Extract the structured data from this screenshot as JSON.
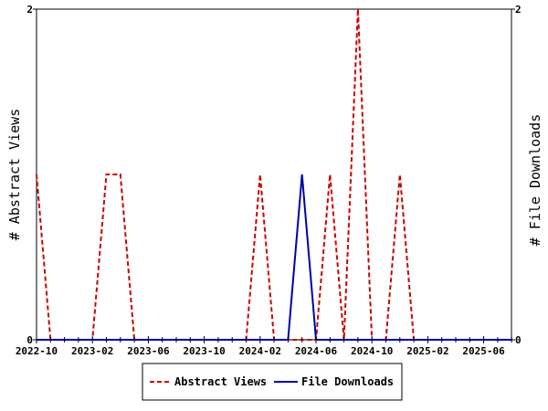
{
  "chart_data": {
    "type": "line",
    "xlabel": "",
    "ylabel_left": "# Abstract Views",
    "ylabel_right": "# File Downloads",
    "ylim": [
      0,
      2
    ],
    "y_ticks": [
      0,
      2
    ],
    "x": [
      "2022-10",
      "2022-11",
      "2022-12",
      "2023-01",
      "2023-02",
      "2023-03",
      "2023-04",
      "2023-05",
      "2023-06",
      "2023-07",
      "2023-08",
      "2023-09",
      "2023-10",
      "2023-11",
      "2023-12",
      "2024-01",
      "2024-02",
      "2024-03",
      "2024-04",
      "2024-05",
      "2024-06",
      "2024-07",
      "2024-08",
      "2024-09",
      "2024-10",
      "2024-11",
      "2024-12",
      "2025-01",
      "2025-02",
      "2025-03",
      "2025-04",
      "2025-05",
      "2025-06",
      "2025-07",
      "2025-08"
    ],
    "x_tick_labels": [
      "2022-10",
      "2023-02",
      "2023-06",
      "2023-10",
      "2024-02",
      "2024-06",
      "2024-10",
      "2025-02",
      "2025-06"
    ],
    "grid": false,
    "legend_position": "bottom",
    "series": [
      {
        "name": "Abstract Views",
        "color": "#cc0000",
        "dash": "dashed",
        "axis": "left",
        "values": [
          1,
          0,
          0,
          0,
          0,
          1,
          1,
          0,
          0,
          0,
          0,
          0,
          0,
          0,
          0,
          0,
          1,
          0,
          0,
          0,
          0,
          1,
          0,
          2,
          0,
          0,
          1,
          0,
          0,
          0,
          0,
          0,
          0,
          0,
          0
        ]
      },
      {
        "name": "File Downloads",
        "color": "#0000aa",
        "dash": "solid",
        "axis": "right",
        "values": [
          0,
          0,
          0,
          0,
          0,
          0,
          0,
          0,
          0,
          0,
          0,
          0,
          0,
          0,
          0,
          0,
          0,
          0,
          0,
          1,
          0,
          0,
          0,
          0,
          0,
          0,
          0,
          0,
          0,
          0,
          0,
          0,
          0,
          0,
          0
        ]
      }
    ]
  }
}
